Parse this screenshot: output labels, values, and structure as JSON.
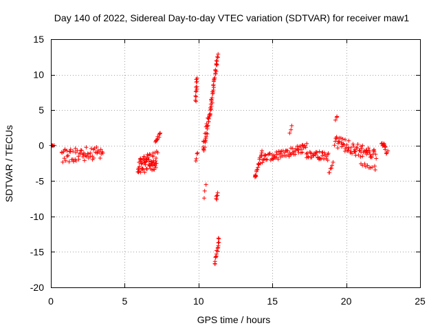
{
  "chart_data": {
    "type": "scatter",
    "title": "Day 140 of 2022, Sidereal Day-to-day VTEC variation (SDTVAR) for receiver maw1",
    "xlabel": "GPS time / hours",
    "ylabel": "SDTVAR / TECUs",
    "xlim": [
      0,
      25
    ],
    "ylim": [
      -20,
      15
    ],
    "xticks": [
      0,
      5,
      10,
      15,
      20,
      25
    ],
    "yticks": [
      -20,
      -15,
      -10,
      -5,
      0,
      5,
      10,
      15
    ],
    "xtick_labels": [
      "0",
      "5",
      "10",
      "15",
      "20",
      "25"
    ],
    "ytick_labels": [
      "-20",
      "-15",
      "-10",
      "-5",
      "0",
      "5",
      "10",
      "15"
    ],
    "grid": true,
    "marker": "+",
    "color": "#ff0000",
    "series": [
      {
        "name": "SDTVAR",
        "clusters": [
          {
            "x": [
              0.0,
              0.2
            ],
            "y": [
              0.0,
              0.0
            ],
            "jitter": 0.05,
            "density": 6
          },
          {
            "x": [
              0.7,
              3.5
            ],
            "y": [
              -1.5,
              -1.0
            ],
            "jitter": 2.0,
            "density": 60
          },
          {
            "x": [
              5.9,
              7.2
            ],
            "y": [
              -3.0,
              -2.0
            ],
            "jitter": 2.5,
            "density": 70
          },
          {
            "x": [
              7.1,
              7.4
            ],
            "y": [
              0.5,
              1.8
            ],
            "jitter": 0.4,
            "density": 12
          },
          {
            "x": [
              9.8,
              9.9
            ],
            "y": [
              6.5,
              9.5
            ],
            "jitter": 0.8,
            "density": 14
          },
          {
            "x": [
              9.8,
              9.9
            ],
            "y": [
              -2.0,
              -1.0
            ],
            "jitter": 0.4,
            "density": 4
          },
          {
            "x": [
              10.3,
              10.9
            ],
            "y": [
              -0.5,
              6.0
            ],
            "jitter": 1.5,
            "density": 40
          },
          {
            "x": [
              10.9,
              11.3
            ],
            "y": [
              6.5,
              12.8
            ],
            "jitter": 0.6,
            "density": 30
          },
          {
            "x": [
              10.4,
              10.5
            ],
            "y": [
              -7.5,
              -5.5
            ],
            "jitter": 0.2,
            "density": 3
          },
          {
            "x": [
              11.2,
              11.3
            ],
            "y": [
              -7.5,
              -6.8
            ],
            "jitter": 0.3,
            "density": 6
          },
          {
            "x": [
              11.1,
              11.4
            ],
            "y": [
              -16.8,
              -13.0
            ],
            "jitter": 0.5,
            "density": 16
          },
          {
            "x": [
              13.8,
              14.3
            ],
            "y": [
              -4.5,
              -1.0
            ],
            "jitter": 1.2,
            "density": 20
          },
          {
            "x": [
              14.3,
              17.3
            ],
            "y": [
              -2.0,
              -0.3
            ],
            "jitter": 1.2,
            "density": 70
          },
          {
            "x": [
              16.2,
              16.3
            ],
            "y": [
              1.8,
              2.7
            ],
            "jitter": 0.3,
            "density": 3
          },
          {
            "x": [
              17.3,
              18.8
            ],
            "y": [
              -1.2,
              -1.6
            ],
            "jitter": 1.2,
            "density": 35
          },
          {
            "x": [
              18.8,
              19.1
            ],
            "y": [
              -3.8,
              -2.5
            ],
            "jitter": 0.6,
            "density": 6
          },
          {
            "x": [
              19.2,
              22.0
            ],
            "y": [
              0.5,
              -1.5
            ],
            "jitter": 1.8,
            "density": 70
          },
          {
            "x": [
              19.3,
              19.4
            ],
            "y": [
              3.5,
              4.2
            ],
            "jitter": 0.3,
            "density": 3
          },
          {
            "x": [
              21.0,
              22.0
            ],
            "y": [
              -2.5,
              -3.2
            ],
            "jitter": 0.6,
            "density": 10
          },
          {
            "x": [
              22.4,
              22.8
            ],
            "y": [
              0.5,
              -1.0
            ],
            "jitter": 0.8,
            "density": 15
          }
        ]
      }
    ]
  }
}
